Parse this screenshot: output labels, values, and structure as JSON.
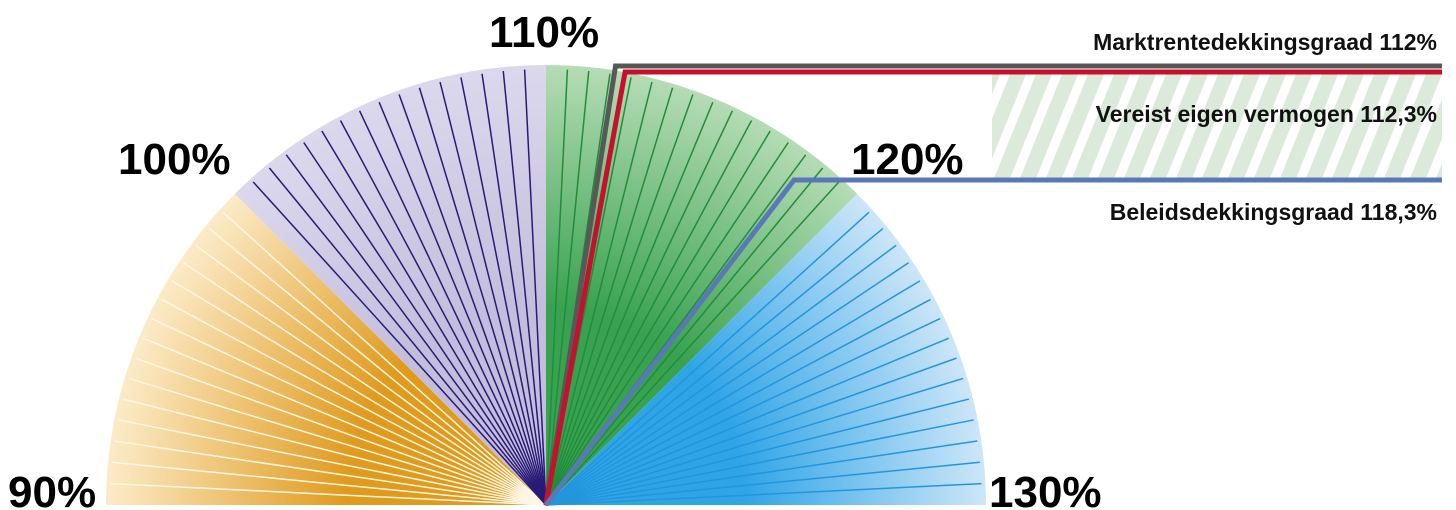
{
  "chart_data": {
    "type": "gauge",
    "scale": {
      "min": 90,
      "max": 130,
      "unit": "%"
    },
    "tick_labels": [
      "90%",
      "100%",
      "110%",
      "120%",
      "130%"
    ],
    "zones": [
      {
        "from": 90,
        "to": 100,
        "color": "#e09a1c",
        "light_color": "#fcebc8",
        "line_color": "#fff6e3"
      },
      {
        "from": 100,
        "to": 110,
        "color": "#c3bedb",
        "light_color": "#dcd8ec",
        "line_color": "#2a1a78"
      },
      {
        "from": 110,
        "to": 120,
        "color": "#39a250",
        "light_color": "#b6dcb5",
        "line_color": "#1f8e3c"
      },
      {
        "from": 120,
        "to": 130,
        "color": "#2fa4e7",
        "light_color": "#cde6f8",
        "line_color": "#2296dc"
      }
    ],
    "indicators": [
      {
        "name": "Marktrentedekkingsgraad 112%",
        "value": 112,
        "color": "#585858"
      },
      {
        "name": "Vereist eigen vermogen 112,3%",
        "value": 112.3,
        "color": "#c8102e"
      },
      {
        "name": "Beleidsdekkingsgraad 118,3%",
        "value": 118.3,
        "color": "#5a78b8"
      }
    ],
    "hatched_band_color": "#dbeadb"
  }
}
